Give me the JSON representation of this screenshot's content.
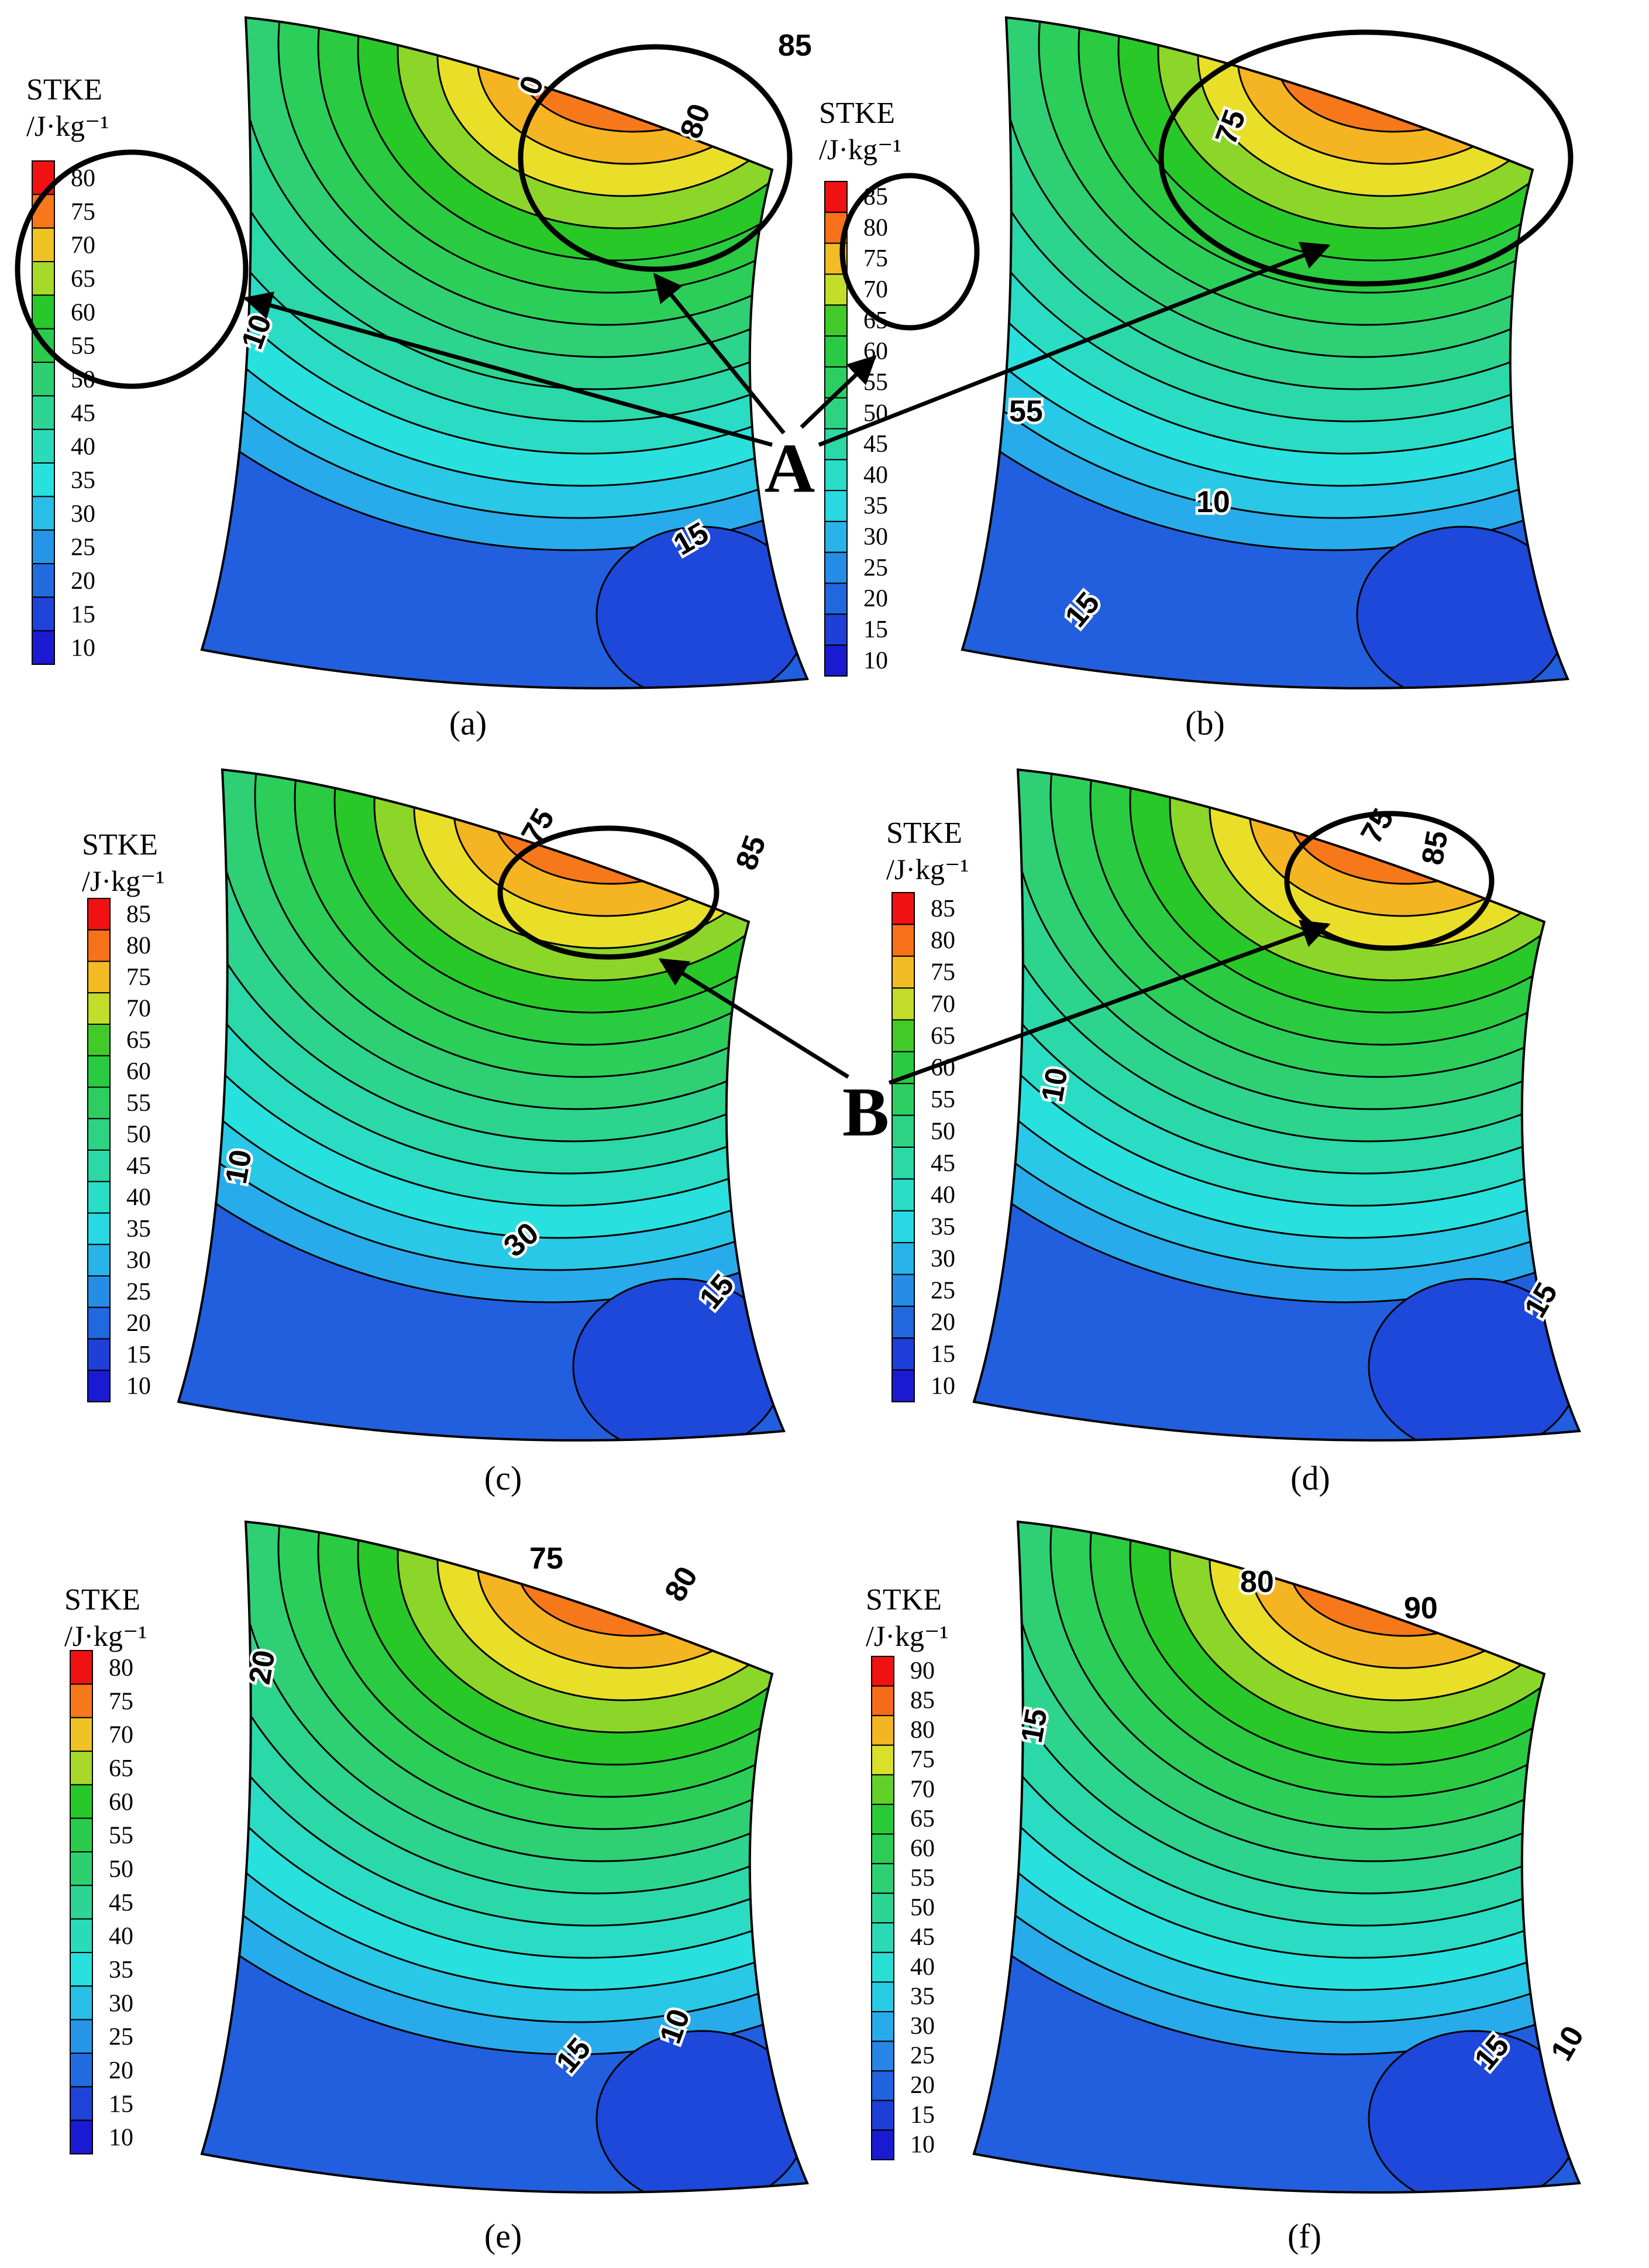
{
  "figure": {
    "panels": [
      {
        "id": "a",
        "caption": "(a)",
        "legend_title": "STKE",
        "legend_unit": "/J·kg⁻¹",
        "legend_ticks": [
          "80",
          "75",
          "70",
          "65",
          "60",
          "55",
          "50",
          "45",
          "40",
          "35",
          "30",
          "25",
          "20",
          "15",
          "10"
        ],
        "contour_labels": [
          "0",
          "80",
          "10",
          "15"
        ]
      },
      {
        "id": "b",
        "caption": "(b)",
        "legend_title": "STKE",
        "legend_unit": "/J·kg⁻¹",
        "legend_ticks": [
          "85",
          "80",
          "75",
          "70",
          "65",
          "60",
          "55",
          "50",
          "45",
          "40",
          "35",
          "30",
          "25",
          "20",
          "15",
          "10"
        ],
        "contour_labels": [
          "85",
          "75",
          "55",
          "10",
          "15"
        ]
      },
      {
        "id": "c",
        "caption": "(c)",
        "legend_title": "STKE",
        "legend_unit": "/J·kg⁻¹",
        "legend_ticks": [
          "85",
          "80",
          "75",
          "70",
          "65",
          "60",
          "55",
          "50",
          "45",
          "40",
          "35",
          "30",
          "25",
          "20",
          "15",
          "10"
        ],
        "contour_labels": [
          "75",
          "85",
          "10",
          "30",
          "15"
        ]
      },
      {
        "id": "d",
        "caption": "(d)",
        "legend_title": "STKE",
        "legend_unit": "/J·kg⁻¹",
        "legend_ticks": [
          "85",
          "80",
          "75",
          "70",
          "65",
          "60",
          "55",
          "50",
          "45",
          "40",
          "35",
          "30",
          "25",
          "20",
          "15",
          "10"
        ],
        "contour_labels": [
          "75",
          "85",
          "10",
          "15"
        ]
      },
      {
        "id": "e",
        "caption": "(e)",
        "legend_title": "STKE",
        "legend_unit": "/J·kg⁻¹",
        "legend_ticks": [
          "80",
          "75",
          "70",
          "65",
          "60",
          "55",
          "50",
          "45",
          "40",
          "35",
          "30",
          "25",
          "20",
          "15",
          "10"
        ],
        "contour_labels": [
          "75",
          "80",
          "20",
          "15",
          "10"
        ]
      },
      {
        "id": "f",
        "caption": "(f)",
        "legend_title": "STKE",
        "legend_unit": "/J·kg⁻¹",
        "legend_ticks": [
          "90",
          "85",
          "80",
          "75",
          "70",
          "65",
          "60",
          "55",
          "50",
          "45",
          "40",
          "35",
          "30",
          "25",
          "20",
          "15",
          "10"
        ],
        "contour_labels": [
          "80",
          "90",
          "15",
          "15",
          "10"
        ]
      }
    ],
    "annotations": {
      "A": "A",
      "B": "B"
    },
    "colors": {
      "scale_low": "#1a1ad2",
      "scale_mid": "#2ed17a",
      "scale_high": "#e8e22a",
      "scale_top": "#f01212",
      "outline": "#000000"
    }
  }
}
